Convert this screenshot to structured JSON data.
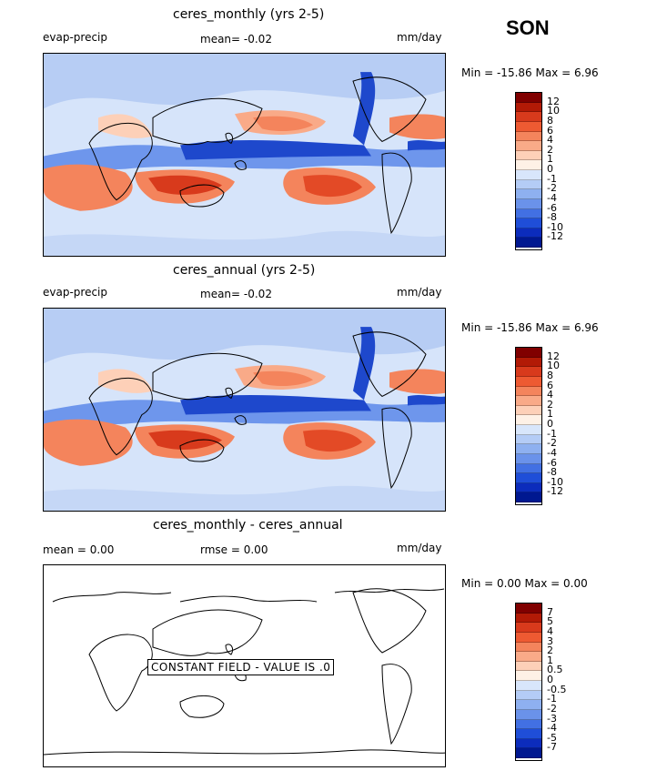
{
  "season": "SON",
  "panels": [
    {
      "title": "ceres_monthly (yrs 2-5)",
      "left_label": "evap-precip",
      "mean_text": "mean=   -0.02",
      "right_label": "mm/day",
      "minmax": "Min = -15.86  Max =    6.96",
      "colorbar": {
        "colors": [
          "#800000",
          "#b21a06",
          "#d83a1c",
          "#ee5a32",
          "#f4845c",
          "#f9aa88",
          "#fdd0b8",
          "#fef1e6",
          "#d8e6fb",
          "#b4ccf6",
          "#8eb0f0",
          "#6a92ea",
          "#4270e3",
          "#1f4ed8",
          "#0c2cbc",
          "#001890"
        ],
        "labels": [
          "12",
          "10",
          "8",
          "6",
          "4",
          "2",
          "1",
          "0",
          "-1",
          "-2",
          "-4",
          "-6",
          "-8",
          "-10",
          "-12"
        ]
      }
    },
    {
      "title": "ceres_annual (yrs 2-5)",
      "left_label": "evap-precip",
      "mean_text": "mean=   -0.02",
      "right_label": "mm/day",
      "minmax": "Min = -15.86  Max =    6.96",
      "colorbar": {
        "colors": [
          "#800000",
          "#b21a06",
          "#d83a1c",
          "#ee5a32",
          "#f4845c",
          "#f9aa88",
          "#fdd0b8",
          "#fef1e6",
          "#d8e6fb",
          "#b4ccf6",
          "#8eb0f0",
          "#6a92ea",
          "#4270e3",
          "#1f4ed8",
          "#0c2cbc",
          "#001890"
        ],
        "labels": [
          "12",
          "10",
          "8",
          "6",
          "4",
          "2",
          "1",
          "0",
          "-1",
          "-2",
          "-4",
          "-6",
          "-8",
          "-10",
          "-12"
        ]
      }
    },
    {
      "title": "ceres_monthly - ceres_annual",
      "left_label": "mean =    0.00",
      "mean_text": "rmse =    0.00",
      "right_label": "mm/day",
      "minmax": "Min =    0.00  Max =    0.00",
      "constant_text": "CONSTANT FIELD - VALUE IS .0",
      "colorbar": {
        "colors": [
          "#800000",
          "#b21a06",
          "#d83a1c",
          "#ee5a32",
          "#f4845c",
          "#f9aa88",
          "#fdd0b8",
          "#fef1e6",
          "#d8e6fb",
          "#b4ccf6",
          "#8eb0f0",
          "#6a92ea",
          "#4270e3",
          "#1f4ed8",
          "#0c2cbc",
          "#001890"
        ],
        "labels": [
          "7",
          "5",
          "4",
          "3",
          "2",
          "1",
          "0.5",
          "0",
          "-0.5",
          "-1",
          "-2",
          "-3",
          "-4",
          "-5",
          "-7"
        ]
      }
    }
  ]
}
